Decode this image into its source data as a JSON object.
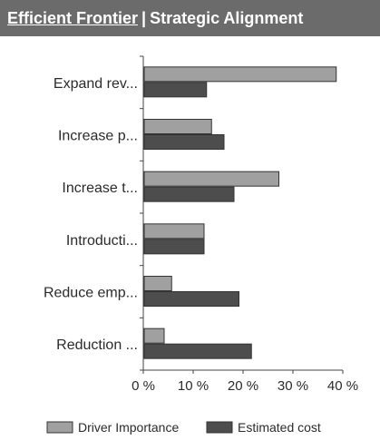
{
  "header": {
    "link_text": "Efficient Frontier",
    "separator": "|",
    "title": "Strategic Alignment"
  },
  "chart_data": {
    "type": "bar",
    "orientation": "horizontal",
    "categories": [
      "Expand rev...",
      "Increase p...",
      "Increase t...",
      "Introducti...",
      "Reduce emp...",
      "Reduction ..."
    ],
    "series": [
      {
        "name": "Driver Importance",
        "values": [
          38.5,
          13.5,
          27,
          12,
          5.5,
          4
        ],
        "color": "#a0a0a0"
      },
      {
        "name": "Estimated cost",
        "values": [
          12.5,
          16,
          18,
          12,
          19,
          21.5
        ],
        "color": "#4d4d4d"
      }
    ],
    "xlim": [
      0,
      40
    ],
    "xticks": [
      "0 %",
      "10 %",
      "20 %",
      "30 %",
      "40 %"
    ],
    "grid": false,
    "legend_position": "bottom"
  }
}
